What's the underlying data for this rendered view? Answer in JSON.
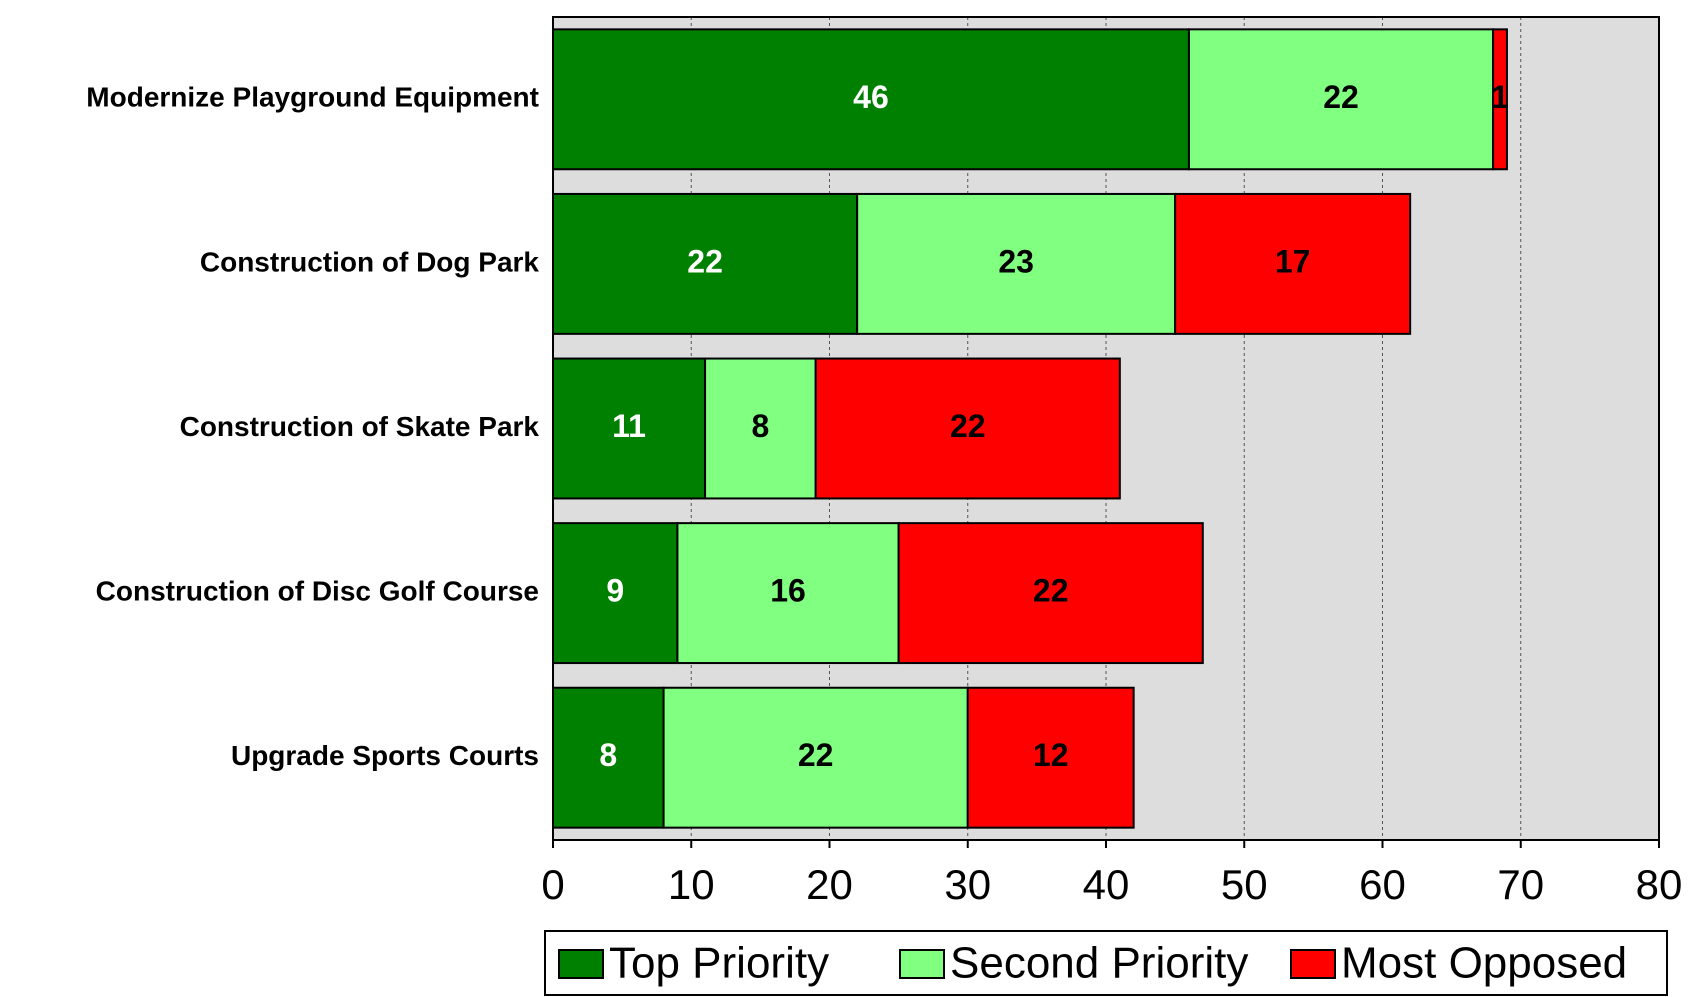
{
  "chart_data": {
    "type": "stacked-bar-horizontal",
    "categories": [
      "Modernize Playground Equipment",
      "Construction of Dog Park",
      "Construction of Skate Park",
      "Construction of Disc Golf Course",
      "Upgrade Sports Courts"
    ],
    "series": [
      {
        "name": "Top Priority",
        "color": "#008000",
        "label_color": "#ffffff",
        "values": [
          46,
          22,
          11,
          9,
          8
        ]
      },
      {
        "name": "Second Priority",
        "color": "#80ff80",
        "label_color": "#000000",
        "values": [
          22,
          23,
          8,
          16,
          22
        ]
      },
      {
        "name": "Most Opposed",
        "color": "#ff0000",
        "label_color": "#000000",
        "values": [
          1,
          17,
          22,
          22,
          12
        ]
      }
    ],
    "xlim": [
      0,
      80
    ],
    "xticks": [
      0,
      10,
      20,
      30,
      40,
      50,
      60,
      70,
      80
    ],
    "grid": true,
    "plot_background": "#dddddd",
    "legend": "bottom"
  }
}
